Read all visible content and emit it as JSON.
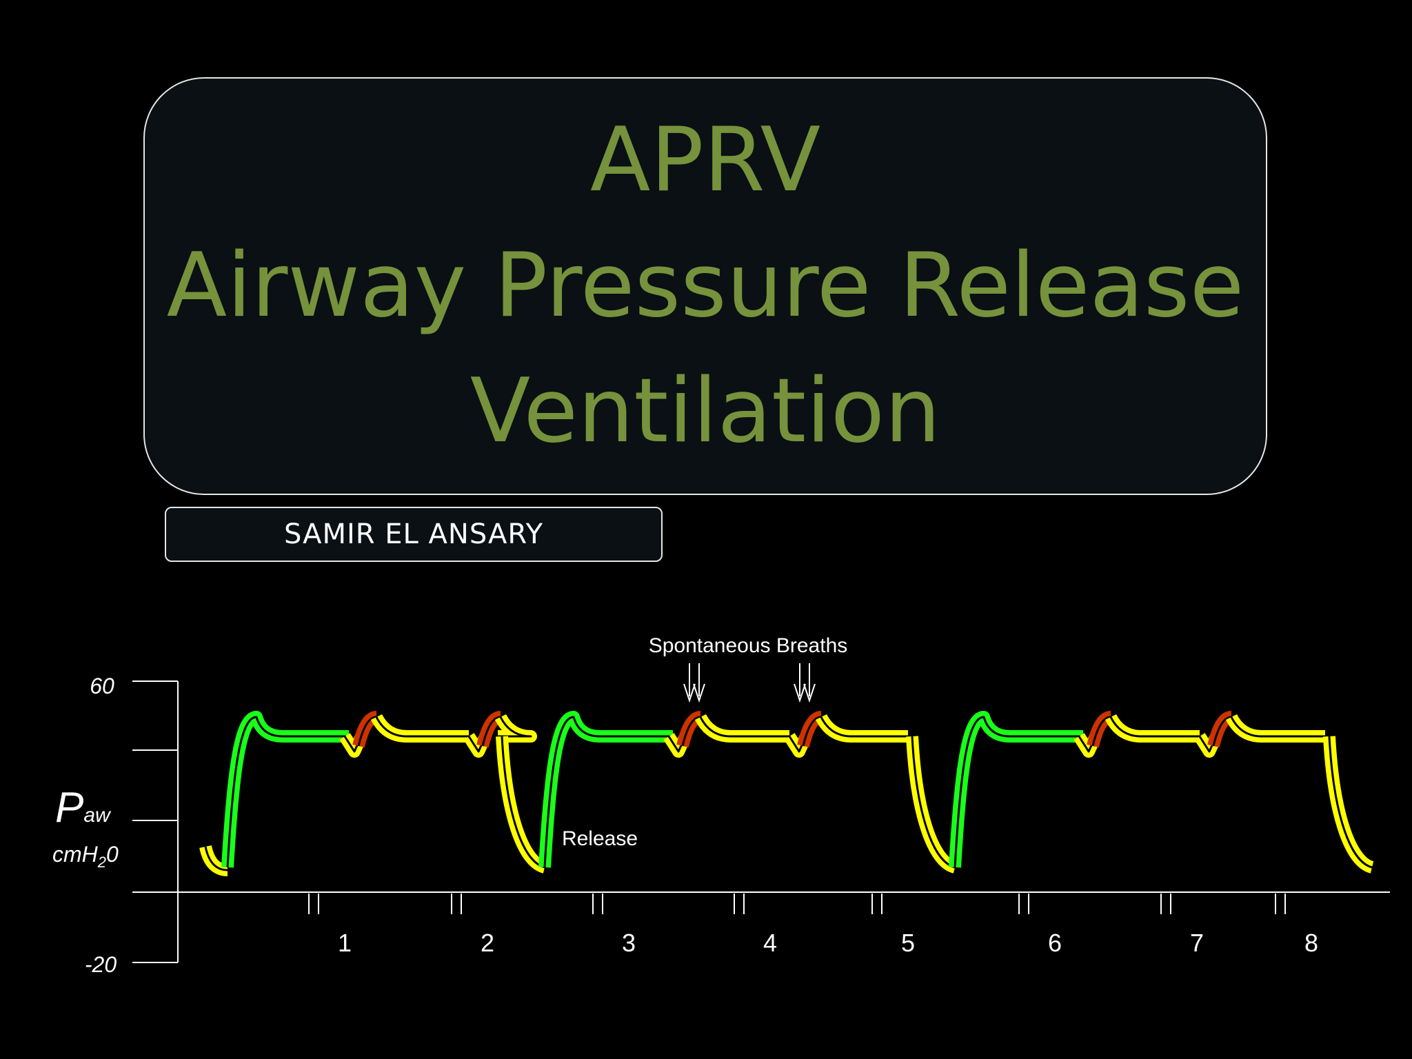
{
  "slide": {
    "title_lines": [
      "APRV",
      "Airway Pressure Release",
      "Ventilation"
    ],
    "author": "SAMIR EL ANSARY",
    "title_color": "#76923c"
  },
  "waveform": {
    "annotation_breaths": "Spontaneous Breaths",
    "annotation_release": "Release",
    "y_axis_top_label": "60",
    "y_axis_bottom_label": "-20",
    "y_title_main": "P",
    "y_title_sub": "aw",
    "y_unit": "cmH",
    "y_unit_sub": "2",
    "y_unit_tail": "0",
    "x_tick_labels": [
      "1",
      "2",
      "3",
      "4",
      "5",
      "6",
      "7",
      "8"
    ],
    "colors": {
      "mandatory_breath": "#19ff19",
      "release_phase": "#ffff00",
      "spontaneous_breath": "#cc3300",
      "axis": "#ffffff"
    }
  }
}
